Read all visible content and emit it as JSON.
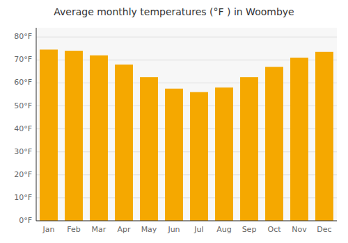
{
  "chart_data": {
    "type": "bar",
    "title": "Average monthly temperatures (°F ) in Woombye",
    "categories": [
      "Jan",
      "Feb",
      "Mar",
      "Apr",
      "May",
      "Jun",
      "Jul",
      "Aug",
      "Sep",
      "Oct",
      "Nov",
      "Dec"
    ],
    "values": [
      74.5,
      74.0,
      72.0,
      68.0,
      62.5,
      57.5,
      56.0,
      58.0,
      62.5,
      67.0,
      71.0,
      73.5
    ],
    "color": "#F5A800",
    "ylim": [
      0,
      84
    ],
    "yticks": [
      {
        "value": 0,
        "label": "0°F"
      },
      {
        "value": 10,
        "label": "10°F"
      },
      {
        "value": 20,
        "label": "20°F"
      },
      {
        "value": 30,
        "label": "30°F"
      },
      {
        "value": 40,
        "label": "40°F"
      },
      {
        "value": 50,
        "label": "50°F"
      },
      {
        "value": 60,
        "label": "60°F"
      },
      {
        "value": 70,
        "label": "70°F"
      },
      {
        "value": 80,
        "label": "80°F"
      }
    ],
    "grid": true
  }
}
